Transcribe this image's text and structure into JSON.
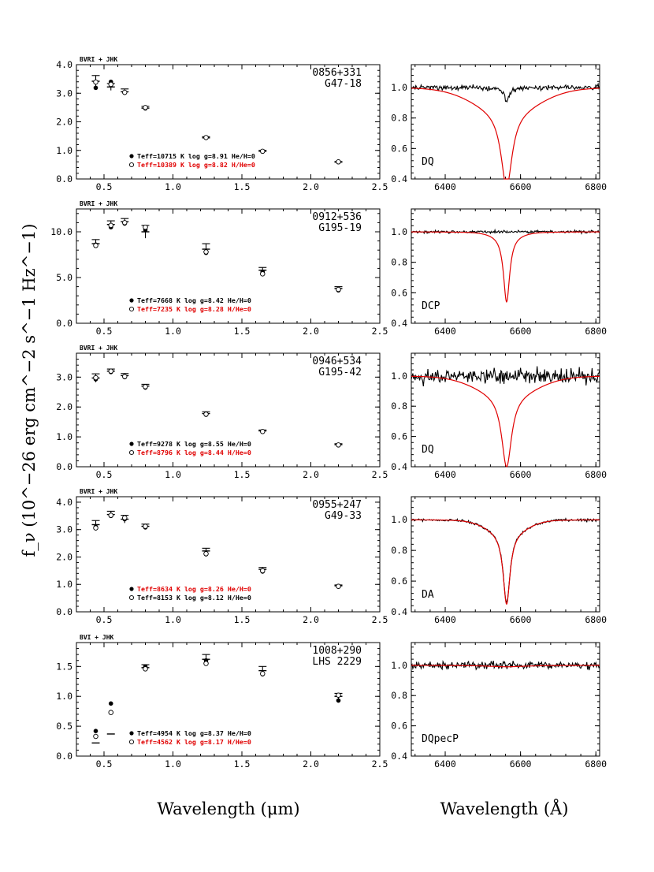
{
  "figure": {
    "ylabel": "f_ν (10^−26 erg cm^−2 s^−1 Hz^−1)",
    "xlabel_left": "Wavelength (μm)",
    "xlabel_right": "Wavelength (Å)"
  },
  "colors": {
    "model_accent": "#e00000",
    "observed": "#000000"
  },
  "chart_data": [
    {
      "type": "scatter",
      "panel": "photometry",
      "row": 0,
      "filter_label": "BVRI + JHK",
      "object_id": "0856+331",
      "object_name": "G47-18",
      "xlim": [
        0.3,
        2.5
      ],
      "ylim": [
        0.0,
        4.0
      ],
      "xticks": [
        0.5,
        1.0,
        1.5,
        2.0,
        2.5
      ],
      "yticks": [
        0,
        1,
        2,
        3,
        4
      ],
      "ytick_labels": [
        "0.0",
        "1.0",
        "2.0",
        "3.0",
        "4.0"
      ],
      "observed": [
        {
          "x": 0.44,
          "y": 3.42,
          "err": 0.2
        },
        {
          "x": 0.55,
          "y": 3.22,
          "err": 0.12
        },
        {
          "x": 0.65,
          "y": 3.05,
          "err": 0.1
        },
        {
          "x": 0.8,
          "y": 2.48,
          "err": 0.06
        },
        {
          "x": 1.24,
          "y": 1.44,
          "err": 0.04
        },
        {
          "x": 1.65,
          "y": 0.97,
          "err": 0.03
        },
        {
          "x": 2.2,
          "y": 0.59,
          "err": 0.02
        }
      ],
      "series": [
        {
          "name": "H-rich",
          "marker": "filled",
          "color": "#000000",
          "legend": "Teff=10715 K  log g=8.91  He/H=0",
          "values": [
            3.19,
            3.4,
            3.02,
            2.47,
            1.44,
            0.96,
            0.59
          ]
        },
        {
          "name": "He-rich",
          "marker": "open",
          "color": "#e00000",
          "legend": "Teff=10389 K  log g=8.82  H/He=0",
          "values": [
            3.39,
            3.31,
            3.03,
            2.5,
            1.45,
            0.97,
            0.6
          ]
        }
      ]
    },
    {
      "type": "line",
      "panel": "spectrum",
      "row": 0,
      "class_label": "DQ",
      "xlim": [
        6310,
        6810
      ],
      "ylim": [
        0.4,
        1.15
      ],
      "xticks": [
        6400,
        6600,
        6800
      ],
      "yticks": [
        0.4,
        0.6,
        0.8,
        1.0
      ],
      "ytick_labels": [
        "0.4",
        "0.6",
        "0.8",
        "1.0"
      ],
      "observed_spectrum": {
        "noise": 0.012,
        "depth": 0.09,
        "width": 8,
        "slope": 0.0
      },
      "model_spectrum": {
        "depth": 0.5,
        "width": 18,
        "wing": 0.15,
        "wing_width": 120
      }
    },
    {
      "type": "scatter",
      "panel": "photometry",
      "row": 1,
      "filter_label": "BVRI + JHK",
      "object_id": "0912+536",
      "object_name": "G195-19",
      "xlim": [
        0.3,
        2.5
      ],
      "ylim": [
        0.0,
        12.5
      ],
      "xticks": [
        0.5,
        1.0,
        1.5,
        2.0,
        2.5
      ],
      "yticks": [
        0,
        5,
        10
      ],
      "ytick_labels": [
        "0.0",
        "5.0",
        "10.0"
      ],
      "observed": [
        {
          "x": 0.44,
          "y": 8.7,
          "err": 0.45
        },
        {
          "x": 0.55,
          "y": 10.8,
          "err": 0.4
        },
        {
          "x": 0.65,
          "y": 11.1,
          "err": 0.35
        },
        {
          "x": 0.8,
          "y": 10.0,
          "err": 0.7
        },
        {
          "x": 1.24,
          "y": 8.1,
          "err": 0.6
        },
        {
          "x": 1.65,
          "y": 5.8,
          "err": 0.3
        },
        {
          "x": 2.2,
          "y": 3.8,
          "err": 0.2
        }
      ],
      "series": [
        {
          "name": "H-rich",
          "marker": "filled",
          "color": "#000000",
          "legend": "Teff=7668 K  log g=8.42  He/H=0",
          "values": [
            8.6,
            10.5,
            10.9,
            10.2,
            7.7,
            5.6,
            3.6
          ]
        },
        {
          "name": "He-rich",
          "marker": "open",
          "color": "#e00000",
          "legend": "Teff=7235 K  log g=8.28  H/He=0",
          "values": [
            8.5,
            10.7,
            11.0,
            10.5,
            7.8,
            5.4,
            3.7
          ]
        }
      ]
    },
    {
      "type": "line",
      "panel": "spectrum",
      "row": 1,
      "class_label": "DCP",
      "xlim": [
        6310,
        6810
      ],
      "ylim": [
        0.4,
        1.15
      ],
      "xticks": [
        6400,
        6600,
        6800
      ],
      "yticks": [
        0.4,
        0.6,
        0.8,
        1.0
      ],
      "ytick_labels": [
        "0.4",
        "0.6",
        "0.8",
        "1.0"
      ],
      "observed_spectrum": {
        "noise": 0.006,
        "depth": 0.0,
        "width": 8,
        "slope": 0.0
      },
      "model_spectrum": {
        "depth": 0.44,
        "width": 10,
        "wing": 0.02,
        "wing_width": 50
      }
    },
    {
      "type": "scatter",
      "panel": "photometry",
      "row": 2,
      "filter_label": "BVRI + JHK",
      "object_id": "0946+534",
      "object_name": "G195-42",
      "xlim": [
        0.3,
        2.5
      ],
      "ylim": [
        0.0,
        3.8
      ],
      "xticks": [
        0.5,
        1.0,
        1.5,
        2.0,
        2.5
      ],
      "yticks": [
        0,
        1,
        2,
        3
      ],
      "ytick_labels": [
        "0.0",
        "1.0",
        "2.0",
        "3.0"
      ],
      "observed": [
        {
          "x": 0.44,
          "y": 2.97,
          "err": 0.14
        },
        {
          "x": 0.55,
          "y": 3.2,
          "err": 0.07
        },
        {
          "x": 0.65,
          "y": 3.05,
          "err": 0.07
        },
        {
          "x": 0.8,
          "y": 2.7,
          "err": 0.06
        },
        {
          "x": 1.24,
          "y": 1.78,
          "err": 0.06
        },
        {
          "x": 1.65,
          "y": 1.2,
          "err": 0.03
        },
        {
          "x": 2.2,
          "y": 0.74,
          "err": 0.03
        }
      ],
      "series": [
        {
          "name": "H-rich",
          "marker": "filled",
          "color": "#000000",
          "legend": "Teff=9278 K  log g=8.55  He/H=0",
          "values": [
            2.93,
            3.17,
            3.0,
            2.65,
            1.74,
            1.17,
            0.72
          ]
        },
        {
          "name": "He-rich",
          "marker": "open",
          "color": "#e00000",
          "legend": "Teff=8796 K  log g=8.44  H/He=0",
          "values": [
            2.98,
            3.2,
            3.02,
            2.68,
            1.76,
            1.18,
            0.73
          ]
        }
      ]
    },
    {
      "type": "line",
      "panel": "spectrum",
      "row": 2,
      "class_label": "DQ",
      "xlim": [
        6310,
        6810
      ],
      "ylim": [
        0.4,
        1.15
      ],
      "xticks": [
        6400,
        6600,
        6800
      ],
      "yticks": [
        0.4,
        0.6,
        0.8,
        1.0
      ],
      "ytick_labels": [
        "0.4",
        "0.6",
        "0.8",
        "1.0"
      ],
      "observed_spectrum": {
        "noise": 0.035,
        "depth": 0.0,
        "width": 8,
        "slope": 0.0
      },
      "model_spectrum": {
        "depth": 0.48,
        "width": 16,
        "wing": 0.12,
        "wing_width": 110
      }
    },
    {
      "type": "scatter",
      "panel": "photometry",
      "row": 3,
      "filter_label": "BVRI + JHK",
      "object_id": "0955+247",
      "object_name": "G49-33",
      "xlim": [
        0.3,
        2.5
      ],
      "ylim": [
        0.0,
        4.2
      ],
      "xticks": [
        0.5,
        1.0,
        1.5,
        2.0,
        2.5
      ],
      "yticks": [
        0,
        1,
        2,
        3,
        4
      ],
      "ytick_labels": [
        "0.0",
        "1.0",
        "2.0",
        "3.0",
        "4.0"
      ],
      "observed": [
        {
          "x": 0.44,
          "y": 3.18,
          "err": 0.15
        },
        {
          "x": 0.55,
          "y": 3.55,
          "err": 0.12
        },
        {
          "x": 0.65,
          "y": 3.38,
          "err": 0.14
        },
        {
          "x": 0.8,
          "y": 3.12,
          "err": 0.08
        },
        {
          "x": 1.24,
          "y": 2.22,
          "err": 0.1
        },
        {
          "x": 1.65,
          "y": 1.55,
          "err": 0.07
        },
        {
          "x": 2.2,
          "y": 0.95,
          "err": 0.03
        }
      ],
      "series": [
        {
          "name": "H-rich",
          "marker": "filled",
          "color": "#e00000",
          "legend": "Teff=8634 K  log g=8.26  He/H=0",
          "values": [
            3.1,
            3.5,
            3.38,
            3.08,
            2.1,
            1.47,
            0.92
          ]
        },
        {
          "name": "He-rich",
          "marker": "open",
          "color": "#000000",
          "legend": "Teff=8153 K  log g=8.12  H/He=0",
          "values": [
            3.06,
            3.52,
            3.43,
            3.12,
            2.12,
            1.5,
            0.93
          ]
        }
      ]
    },
    {
      "type": "line",
      "panel": "spectrum",
      "row": 3,
      "class_label": "DA",
      "xlim": [
        6310,
        6810
      ],
      "ylim": [
        0.4,
        1.15
      ],
      "xticks": [
        6400,
        6600,
        6800
      ],
      "yticks": [
        0.4,
        0.6,
        0.8,
        1.0
      ],
      "ytick_labels": [
        "0.4",
        "0.6",
        "0.8",
        "1.0"
      ],
      "observed_spectrum": {
        "noise": 0.006,
        "depth": 0.46,
        "width": 11,
        "slope": 0.0
      },
      "model_spectrum": {
        "depth": 0.47,
        "width": 11,
        "wing": 0.08,
        "wing_width": 70
      }
    },
    {
      "type": "scatter",
      "panel": "photometry",
      "row": 4,
      "filter_label": "BVI + JHK",
      "object_id": "1008+290",
      "object_name": "LHS 2229",
      "xlim": [
        0.3,
        2.5
      ],
      "ylim": [
        0.0,
        1.9
      ],
      "xticks": [
        0.5,
        1.0,
        1.5,
        2.0,
        2.5
      ],
      "yticks": [
        0,
        0.5,
        1.0,
        1.5
      ],
      "ytick_labels": [
        "0.0",
        "0.5",
        "1.0",
        "1.5"
      ],
      "observed": [
        {
          "x": 0.44,
          "y": 0.22,
          "err": 0.0
        },
        {
          "x": 0.55,
          "y": 0.37,
          "err": 0.0
        },
        {
          "x": 0.8,
          "y": 1.48,
          "err": 0.05
        },
        {
          "x": 1.24,
          "y": 1.62,
          "err": 0.08
        },
        {
          "x": 1.65,
          "y": 1.43,
          "err": 0.07
        },
        {
          "x": 2.2,
          "y": 1.0,
          "err": 0.05
        }
      ],
      "series": [
        {
          "name": "H-rich",
          "marker": "filled",
          "color": "#000000",
          "legend": "Teff=4954 K  log g=8.37  He/H=0",
          "values": [
            0.42,
            0.88,
            1.5,
            1.6,
            1.37,
            0.93
          ]
        },
        {
          "name": "He-rich",
          "marker": "open",
          "color": "#e00000",
          "legend": "Teff=4562 K  log g=8.17  H/He=0",
          "values": [
            0.33,
            0.73,
            1.46,
            1.55,
            1.38,
            1.02
          ]
        }
      ]
    },
    {
      "type": "line",
      "panel": "spectrum",
      "row": 4,
      "class_label": "DQpecP",
      "xlim": [
        6310,
        6810
      ],
      "ylim": [
        0.4,
        1.15
      ],
      "xticks": [
        6400,
        6600,
        6800
      ],
      "yticks": [
        0.4,
        0.6,
        0.8,
        1.0
      ],
      "ytick_labels": [
        "0.4",
        "0.6",
        "0.8",
        "1.0"
      ],
      "observed_spectrum": {
        "noise": 0.017,
        "depth": 0.0,
        "width": 8,
        "slope": 0.0
      },
      "model_spectrum": {
        "depth": 0.01,
        "width": 60,
        "wing": 0.0,
        "wing_width": 60
      }
    }
  ]
}
